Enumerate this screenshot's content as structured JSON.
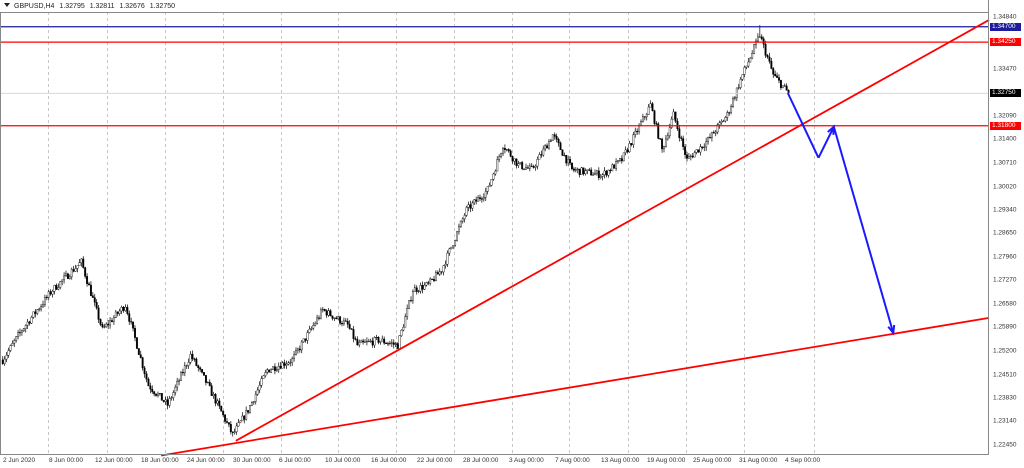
{
  "header": {
    "symbol": "GBPUSD,H4",
    "open": "1.32795",
    "high": "1.32811",
    "low": "1.32676",
    "close": "1.32750"
  },
  "colors": {
    "background": "#ffffff",
    "candle_bull": "#ffffff",
    "candle_bear": "#000000",
    "outline": "#000000",
    "trendline": "#ff0000",
    "level_red": "#ff0000",
    "level_blue": "#1c1c9c",
    "projection": "#1a1aff",
    "grid": "#a0a0a0"
  },
  "chart_data": {
    "type": "candlestick",
    "symbol": "GBPUSD",
    "timeframe": "H4",
    "ylim": [
      1.2245,
      1.3484
    ],
    "grid": "vertical dashed",
    "price_ticks": [
      "1.34840",
      "1.33470",
      "1.32090",
      "1.31400",
      "1.30710",
      "1.30020",
      "1.29340",
      "1.28650",
      "1.27960",
      "1.27270",
      "1.26580",
      "1.25890",
      "1.25200",
      "1.24510",
      "1.23830",
      "1.23140",
      "1.22450"
    ],
    "time_ticks": [
      {
        "date": "2020-06-02",
        "label": "2 Jun 2020"
      },
      {
        "date": "2020-06-08",
        "label": "8 Jun 00:00"
      },
      {
        "date": "2020-06-12",
        "label": "12 Jun 00:00"
      },
      {
        "date": "2020-06-18",
        "label": "18 Jun 00:00"
      },
      {
        "date": "2020-06-24",
        "label": "24 Jun 00:00"
      },
      {
        "date": "2020-06-30",
        "label": "30 Jun 00:00"
      },
      {
        "date": "2020-07-06",
        "label": "6 Jul 00:00"
      },
      {
        "date": "2020-07-10",
        "label": "10 Jul 00:00"
      },
      {
        "date": "2020-07-16",
        "label": "16 Jul 00:00"
      },
      {
        "date": "2020-07-22",
        "label": "22 Jul 00:00"
      },
      {
        "date": "2020-07-28",
        "label": "28 Jul 00:00"
      },
      {
        "date": "2020-08-03",
        "label": "3 Aug 00:00"
      },
      {
        "date": "2020-08-07",
        "label": "7 Aug 00:00"
      },
      {
        "date": "2020-08-13",
        "label": "13 Aug 00:00"
      },
      {
        "date": "2020-08-19",
        "label": "19 Aug 00:00"
      },
      {
        "date": "2020-08-25",
        "label": "25 Aug 00:00"
      },
      {
        "date": "2020-08-31",
        "label": "31 Aug 00:00"
      },
      {
        "date": "2020-09-04",
        "label": "4 Sep 00:00"
      }
    ],
    "approx_close_path": [
      [
        "2020-06-02 00:00",
        1.2494
      ],
      [
        "2020-06-03 16:00",
        1.2582
      ],
      [
        "2020-06-08 08:00",
        1.2699
      ],
      [
        "2020-06-10 20:00",
        1.2781
      ],
      [
        "2020-06-12 16:00",
        1.2582
      ],
      [
        "2020-06-16 16:00",
        1.2655
      ],
      [
        "2020-06-18 16:00",
        1.242
      ],
      [
        "2020-06-22 08:00",
        1.2362
      ],
      [
        "2020-06-24 08:00",
        1.2508
      ],
      [
        "2020-06-25 20:00",
        1.242
      ],
      [
        "2020-06-30 00:00",
        1.2274
      ],
      [
        "2020-07-01 08:00",
        1.2347
      ],
      [
        "2020-07-03 00:00",
        1.2464
      ],
      [
        "2020-07-07 04:00",
        1.2494
      ],
      [
        "2020-07-09 20:00",
        1.264
      ],
      [
        "2020-07-14 00:00",
        1.2596
      ],
      [
        "2020-07-14 20:00",
        1.2537
      ],
      [
        "2020-07-16 16:00",
        1.2552
      ],
      [
        "2020-07-20 08:00",
        1.2537
      ],
      [
        "2020-07-21 16:00",
        1.2699
      ],
      [
        "2020-07-23 00:00",
        1.2714
      ],
      [
        "2020-07-24 04:00",
        1.2758
      ],
      [
        "2020-07-28 08:00",
        1.2933
      ],
      [
        "2020-07-30 04:00",
        1.2992
      ],
      [
        "2020-07-31 12:00",
        1.3124
      ],
      [
        "2020-08-03 20:00",
        1.3065
      ],
      [
        "2020-08-05 00:00",
        1.3051
      ],
      [
        "2020-08-06 20:00",
        1.3153
      ],
      [
        "2020-08-10 12:00",
        1.3051
      ],
      [
        "2020-08-13 04:00",
        1.3036
      ],
      [
        "2020-08-14 20:00",
        1.308
      ],
      [
        "2020-08-19 08:00",
        1.3241
      ],
      [
        "2020-08-20 08:00",
        1.3109
      ],
      [
        "2020-08-21 08:00",
        1.3212
      ],
      [
        "2020-08-24 12:00",
        1.308
      ],
      [
        "2020-08-26 08:00",
        1.3138
      ],
      [
        "2020-08-28 00:00",
        1.3212
      ],
      [
        "2020-08-31 08:00",
        1.3329
      ],
      [
        "2020-09-01 20:00",
        1.3446
      ],
      [
        "2020-09-03 00:00",
        1.3329
      ],
      [
        "2020-09-04 08:00",
        1.3275
      ]
    ],
    "period_high": 1.3475,
    "horizontal_levels": [
      {
        "price": "1.34700",
        "color": "#1c1c9c"
      },
      {
        "price": "1.34250",
        "color": "#ff0000"
      },
      {
        "price": "1.31800",
        "color": "#ff0000"
      }
    ],
    "current_price": "1.32750",
    "trendlines": [
      {
        "from": [
          "2020-06-30 08:00",
          1.2257
        ],
        "to": [
          "2020-09-29 20:00",
          1.349
        ],
        "color": "#ff0000"
      },
      {
        "from": [
          "2020-06-19 20:00",
          1.2214
        ],
        "to": [
          "2020-09-29 20:00",
          1.2617
        ],
        "color": "#ff0000"
      }
    ],
    "projection_path": [
      [
        "2020-09-04 08:00",
        1.3276
      ],
      [
        "2020-09-09 00:00",
        1.3086
      ],
      [
        "2020-09-10 08:00",
        1.3177
      ],
      [
        "2020-09-17 12:00",
        1.2573
      ]
    ]
  }
}
